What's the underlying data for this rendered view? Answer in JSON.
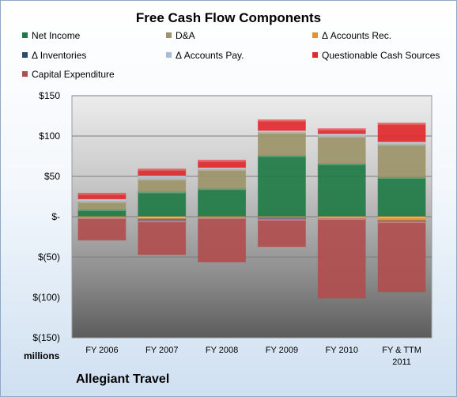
{
  "chart_data": {
    "type": "bar",
    "stacked": true,
    "title": "Free Cash Flow Components",
    "units_label": "millions",
    "company": "Allegiant Travel",
    "categories": [
      "FY 2006",
      "FY 2007",
      "FY 2008",
      "FY 2009",
      "FY 2010",
      "FY & TTM 2011"
    ],
    "category_lines": [
      [
        "FY 2006"
      ],
      [
        "FY 2007"
      ],
      [
        "FY 2008"
      ],
      [
        "FY 2009"
      ],
      [
        "FY 2010"
      ],
      [
        "FY & TTM",
        "2011"
      ]
    ],
    "ylim": [
      -150,
      150
    ],
    "yticks": [
      150,
      100,
      50,
      0,
      -50,
      -100,
      -150
    ],
    "ytick_labels": [
      "$150",
      "$100",
      "$50",
      "$-",
      "$(50)",
      "$(100)",
      "$(150)"
    ],
    "grid": true,
    "legend_position": "top",
    "series": [
      {
        "name": "Net Income",
        "color": "#1f7a45",
        "values": [
          9,
          31,
          35,
          76,
          66,
          49
        ]
      },
      {
        "name": "D&A",
        "color": "#9c9468",
        "values": [
          10,
          16,
          24,
          29,
          34,
          41
        ]
      },
      {
        "name": "Δ Accounts Rec.",
        "color": "#e8912a",
        "values": [
          -1,
          -3,
          -1,
          -1,
          -2,
          -5
        ]
      },
      {
        "name": "Δ Inventories",
        "color": "#2b4a6e",
        "values": [
          0,
          -2,
          0,
          -2,
          0,
          -1
        ]
      },
      {
        "name": "Δ Accounts Pay.",
        "color": "#a8bcd4",
        "values": [
          3,
          4,
          2,
          2,
          3,
          3
        ]
      },
      {
        "name": "Questionable Cash Sources",
        "color": "#e0292c",
        "values": [
          7,
          8,
          9,
          13,
          6,
          23
        ]
      },
      {
        "name": "Capital Expenditure",
        "color": "#b04e4e",
        "values": [
          -28,
          -42,
          -55,
          -34,
          -99,
          -87
        ]
      }
    ]
  }
}
